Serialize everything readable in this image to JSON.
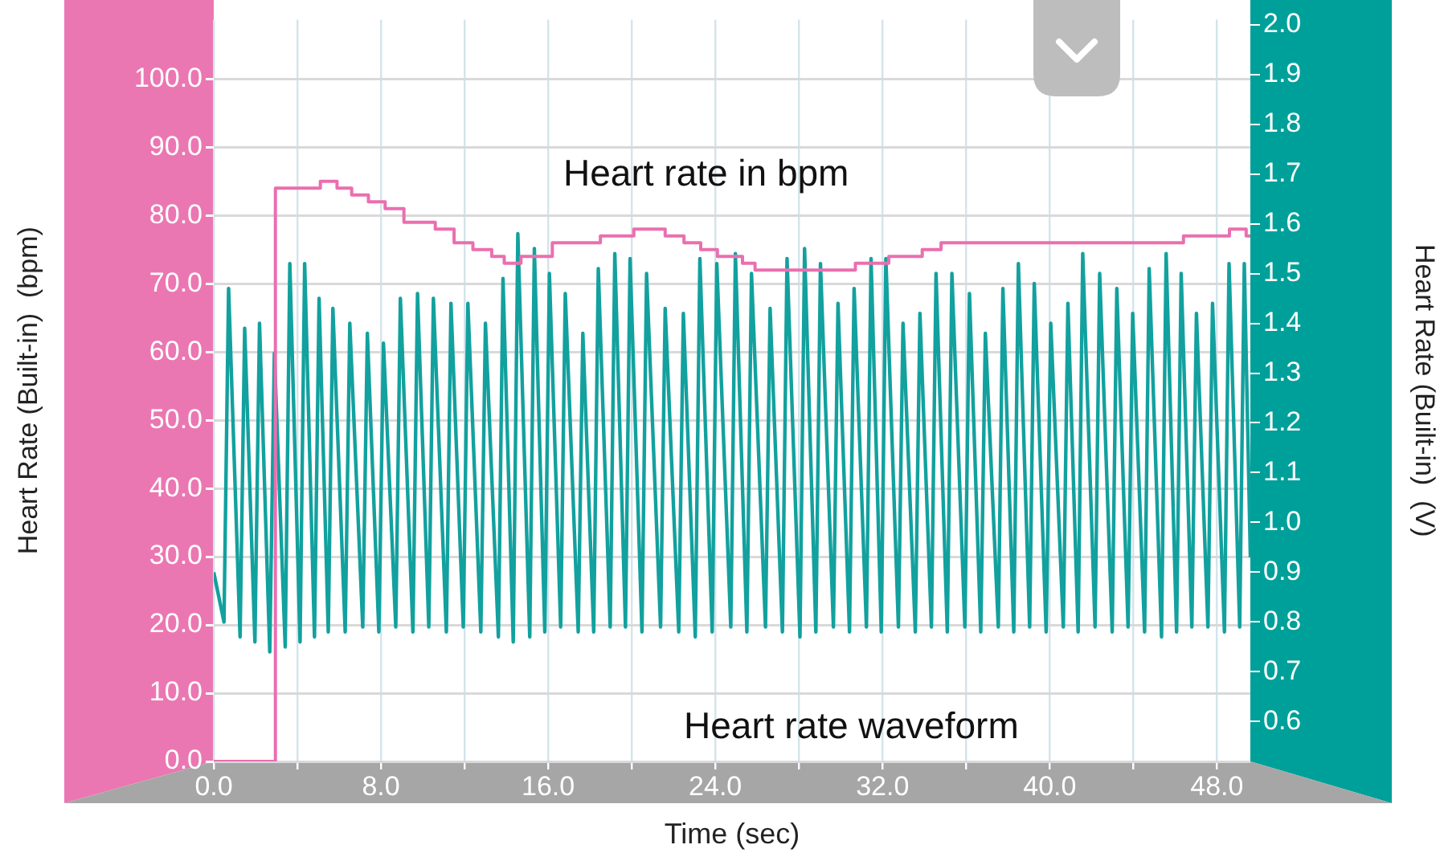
{
  "chart_data": {
    "type": "line",
    "xlabel": "Time (sec)",
    "ylabel": "Heart Rate (Built-in)  (bpm)",
    "y2label": "Heart Rate (Built-in)  (V)",
    "xlim": [
      0,
      49.6
    ],
    "xticks": [
      {
        "value": 0,
        "label": "0.0"
      },
      {
        "value": 4,
        "label": null
      },
      {
        "value": 8,
        "label": "8.0"
      },
      {
        "value": 12,
        "label": null
      },
      {
        "value": 16,
        "label": "16.0"
      },
      {
        "value": 20,
        "label": null
      },
      {
        "value": 24,
        "label": "24.0"
      },
      {
        "value": 28,
        "label": null
      },
      {
        "value": 32,
        "label": "32.0"
      },
      {
        "value": 36,
        "label": null
      },
      {
        "value": 40,
        "label": "40.0"
      },
      {
        "value": 44,
        "label": null
      },
      {
        "value": 48,
        "label": "48.0"
      }
    ],
    "ylim": [
      0,
      108.7
    ],
    "yticks": [
      {
        "value": 0,
        "label": "0.0"
      },
      {
        "value": 10,
        "label": "10.0"
      },
      {
        "value": 20,
        "label": "20.0"
      },
      {
        "value": 30,
        "label": "30.0"
      },
      {
        "value": 40,
        "label": "40.0"
      },
      {
        "value": 50,
        "label": "50.0"
      },
      {
        "value": 60,
        "label": "60.0"
      },
      {
        "value": 70,
        "label": "70.0"
      },
      {
        "value": 80,
        "label": "80.0"
      },
      {
        "value": 90,
        "label": "90.0"
      },
      {
        "value": 100,
        "label": "100.0"
      }
    ],
    "y2lim": [
      0.52,
      2.01
    ],
    "y2ticks": [
      0.6,
      0.7,
      0.8,
      0.9,
      {
        "value": 1,
        "label": "1.0"
      },
      1.1,
      1.2,
      1.3,
      1.4,
      1.5,
      1.6,
      1.7,
      1.8,
      1.9,
      {
        "value": 2,
        "label": "2.0"
      }
    ],
    "grid": true,
    "series": [
      {
        "name": "Heart rate in bpm",
        "type": "step",
        "color": "#ea6fb0",
        "x": [
          0,
          2.95,
          5.1,
          5.9,
          6.6,
          7.4,
          8.2,
          9.1,
          10.6,
          11.5,
          12.4,
          13.3,
          13.9,
          14.7,
          16.2,
          18.5,
          20.1,
          21.6,
          22.5,
          23.3,
          24.1,
          25.3,
          25.9,
          30.7,
          32.3,
          33.9,
          34.8,
          46.4,
          48.6,
          49.4,
          49.6
        ],
        "values": [
          0,
          84,
          85,
          84,
          83,
          82,
          81,
          79,
          78,
          76,
          75,
          74,
          73,
          74,
          76,
          77,
          78,
          77,
          76,
          75,
          74,
          73,
          72,
          73,
          74,
          75,
          76,
          77,
          78,
          77,
          77
        ]
      },
      {
        "name": "Heart rate waveform",
        "type": "line",
        "axis": "y2",
        "color": "#12a19e",
        "x": [
          0,
          0.49,
          0.71,
          1.26,
          1.48,
          1.97,
          2.19,
          2.68,
          2.9,
          3.42,
          3.64,
          4.13,
          4.35,
          4.82,
          5.04,
          5.48,
          5.7,
          6.29,
          6.51,
          7.13,
          7.35,
          7.9,
          8.12,
          8.71,
          8.93,
          9.53,
          9.75,
          10.29,
          10.51,
          11.13,
          11.35,
          11.94,
          12.16,
          12.78,
          13,
          13.62,
          13.84,
          14.33,
          14.55,
          15.12,
          15.34,
          15.84,
          16.06,
          16.6,
          16.82,
          17.44,
          17.66,
          18.18,
          18.4,
          18.97,
          19.19,
          19.7,
          19.92,
          20.49,
          20.71,
          21.38,
          21.6,
          22.25,
          22.47,
          23.04,
          23.26,
          23.85,
          24.07,
          24.74,
          24.96,
          25.51,
          25.73,
          26.4,
          26.62,
          27.21,
          27.43,
          28.05,
          28.27,
          28.81,
          29.03,
          29.65,
          29.87,
          30.42,
          30.64,
          31.23,
          31.45,
          31.94,
          32.16,
          32.76,
          32.98,
          33.57,
          33.79,
          34.34,
          34.56,
          35.1,
          35.32,
          35.94,
          36.16,
          36.7,
          36.92,
          37.54,
          37.76,
          38.28,
          38.5,
          39.04,
          39.26,
          39.83,
          40.05,
          40.65,
          40.87,
          41.36,
          41.58,
          42.17,
          42.39,
          42.99,
          43.21,
          43.75,
          43.97,
          44.54,
          44.76,
          45.35,
          45.57,
          46.07,
          46.29,
          46.8,
          47.02,
          47.57,
          47.79,
          48.36,
          48.58,
          49.09,
          49.31,
          49.6
        ],
        "values": [
          0.9,
          0.8,
          1.47,
          0.77,
          1.39,
          0.76,
          1.4,
          0.74,
          1.34,
          0.75,
          1.52,
          0.76,
          1.52,
          0.77,
          1.45,
          0.78,
          1.43,
          0.78,
          1.4,
          0.79,
          1.38,
          0.78,
          1.36,
          0.79,
          1.45,
          0.78,
          1.46,
          0.79,
          1.45,
          0.78,
          1.44,
          0.79,
          1.44,
          0.78,
          1.4,
          0.77,
          1.49,
          0.76,
          1.58,
          0.77,
          1.55,
          0.78,
          1.5,
          0.79,
          1.46,
          0.78,
          1.38,
          0.78,
          1.51,
          0.79,
          1.54,
          0.79,
          1.53,
          0.78,
          1.5,
          0.79,
          1.43,
          0.78,
          1.42,
          0.77,
          1.53,
          0.78,
          1.52,
          0.79,
          1.54,
          0.78,
          1.5,
          0.79,
          1.43,
          0.78,
          1.53,
          0.77,
          1.55,
          0.78,
          1.52,
          0.79,
          1.44,
          0.78,
          1.47,
          0.79,
          1.53,
          0.78,
          1.53,
          0.79,
          1.4,
          0.78,
          1.42,
          0.79,
          1.5,
          0.78,
          1.5,
          0.79,
          1.46,
          0.78,
          1.38,
          0.79,
          1.47,
          0.78,
          1.52,
          0.79,
          1.48,
          0.78,
          1.4,
          0.79,
          1.44,
          0.78,
          1.54,
          0.79,
          1.5,
          0.78,
          1.47,
          0.79,
          1.42,
          0.78,
          1.51,
          0.77,
          1.54,
          0.78,
          1.5,
          0.79,
          1.42,
          0.79,
          1.44,
          0.78,
          1.52,
          0.79,
          1.52,
          0.93
        ]
      }
    ],
    "legend": false
  }
}
